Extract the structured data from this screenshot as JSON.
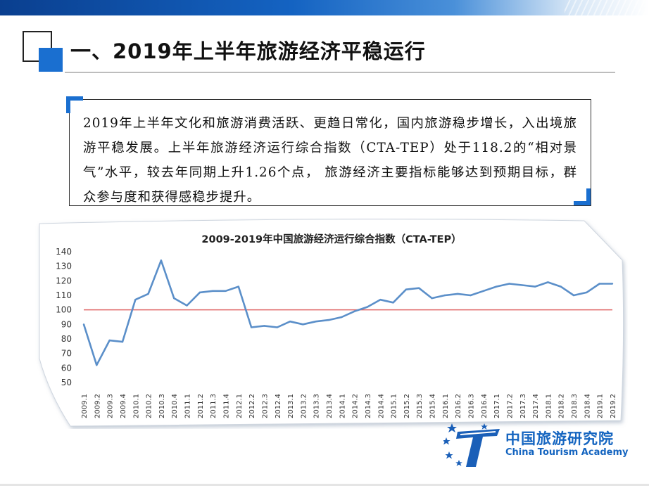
{
  "title": "一、2019年上半年旅游经济平稳运行",
  "paragraph": "2019年上半年文化和旅游消费活跃、更趋日常化，国内旅游稳步增长，入出境旅游平稳发展。上半年旅游经济运行综合指数（CTA-TEP）处于118.2的“相对景气”水平，较去年同期上升1.26个点， 旅游经济主要指标能够达到预期目标，群众参与度和获得感稳步提升。",
  "logo": {
    "cn": "中国旅游研究院",
    "en": "China Tourism Academy"
  },
  "colors": {
    "accent": "#1a6fd0",
    "line": "#5b8fc9",
    "reference": "#e06666"
  },
  "chart_data": {
    "type": "line",
    "title": "2009-2019年中国旅游经济运行综合指数（CTA-TEP）",
    "ylim": [
      50,
      140
    ],
    "yticks": [
      50,
      60,
      70,
      80,
      90,
      100,
      110,
      120,
      130,
      140
    ],
    "reference_line": 100,
    "grid": false,
    "categories": [
      "2009.1",
      "2009.2",
      "2009.3",
      "2009.4",
      "2010.1",
      "2010.2",
      "2010.3",
      "2010.4",
      "2011.1",
      "2011.2",
      "2011.3",
      "2011.4",
      "2012.1",
      "2012.2",
      "2012.3",
      "2012.4",
      "2013.1",
      "2013.2",
      "2013.3",
      "2013.4",
      "2014.1",
      "2014.2",
      "2014.3",
      "2014.4",
      "2015.1",
      "2015.2",
      "2015.3",
      "2015.4",
      "2016.1",
      "2016.2",
      "2016.3",
      "2016.4",
      "2017.1",
      "2017.2",
      "2017.3",
      "2017.4",
      "2018.1",
      "2018.2",
      "2018.3",
      "2018.4",
      "2019.1",
      "2019.2"
    ],
    "values": [
      90,
      62,
      79,
      78,
      107,
      111,
      134,
      108,
      103,
      112,
      113,
      113,
      116,
      88,
      89,
      88,
      92,
      90,
      92,
      93,
      95,
      99,
      102,
      107,
      105,
      114,
      115,
      108,
      110,
      111,
      110,
      113,
      116,
      118,
      117,
      116,
      119,
      116,
      110,
      112,
      118,
      118
    ]
  }
}
